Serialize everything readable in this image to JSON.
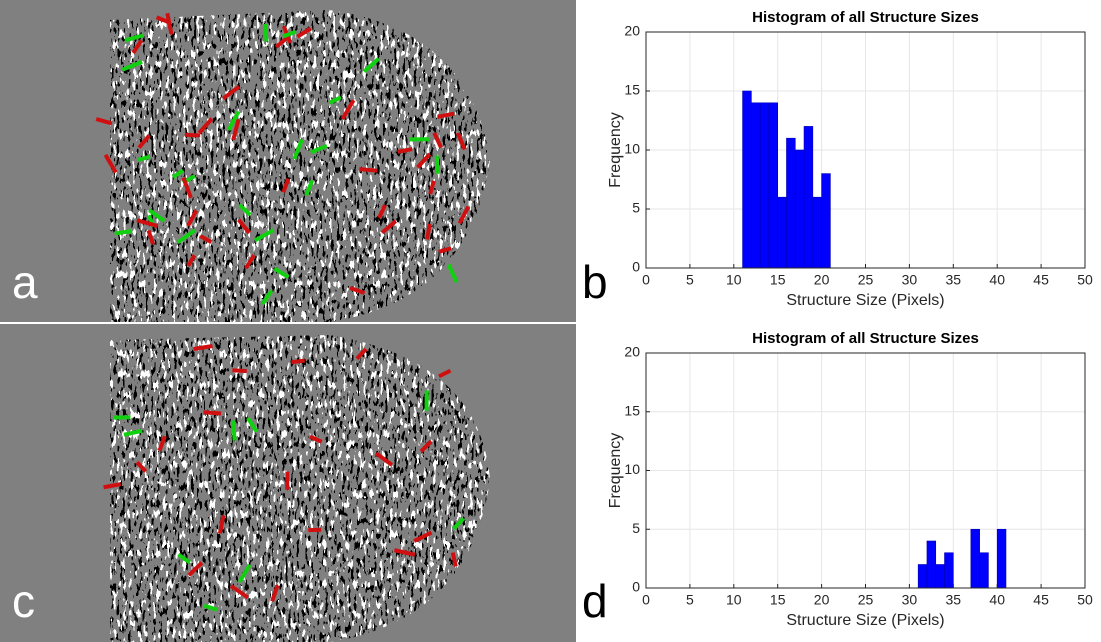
{
  "panels": [
    "a",
    "b",
    "c",
    "d"
  ],
  "chart_data": [
    {
      "type": "histogram",
      "title": "Histogram of all Structure Sizes",
      "xlabel": "Structure Size (Pixels)",
      "ylabel": "Frequency",
      "bins": [
        11,
        12,
        13,
        14,
        15,
        16,
        17,
        18,
        19,
        20,
        21
      ],
      "values": [
        15,
        14,
        14,
        14,
        6,
        11,
        10,
        12,
        6,
        8
      ],
      "color": "#0000ff",
      "xlim": [
        0,
        50
      ],
      "ylim": [
        0,
        20
      ],
      "xticks": [
        0,
        5,
        10,
        15,
        20,
        25,
        30,
        35,
        40,
        45,
        50
      ],
      "yticks": [
        0,
        5,
        10,
        15,
        20
      ],
      "grid": true
    },
    {
      "type": "histogram",
      "title": "Histogram of all Structure Sizes",
      "xlabel": "Structure Size (Pixels)",
      "ylabel": "Frequency",
      "bins": [
        31,
        32,
        33,
        34,
        35,
        36,
        37,
        38,
        39,
        40,
        41
      ],
      "values": [
        2,
        4,
        2,
        3,
        0,
        0,
        5,
        3,
        0,
        5
      ],
      "color": "#0000ff",
      "xlim": [
        0,
        50
      ],
      "ylim": [
        0,
        20
      ],
      "xticks": [
        0,
        5,
        10,
        15,
        20,
        25,
        30,
        35,
        40,
        45,
        50
      ],
      "yticks": [
        0,
        5,
        10,
        15,
        20
      ],
      "grid": true
    }
  ]
}
